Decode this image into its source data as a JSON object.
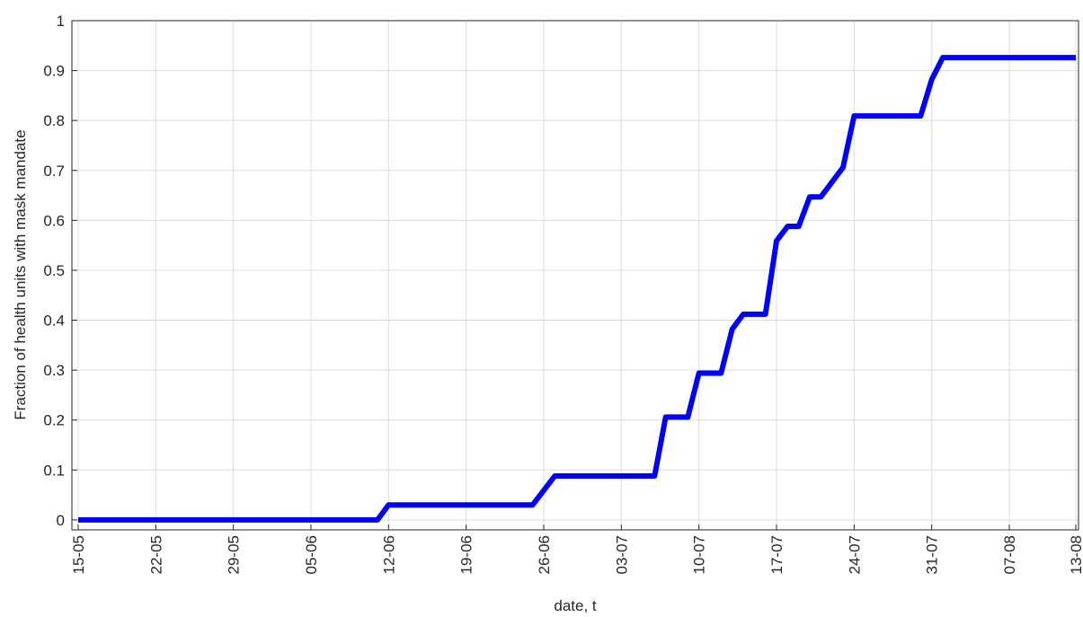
{
  "chart_data": {
    "type": "line",
    "x_label": "date, t",
    "y_label": "Fraction of health units with mask mandate",
    "x": [
      "15-05",
      "11-06",
      "12-06",
      "25-06",
      "27-06",
      "06-07",
      "07-07",
      "09-07",
      "10-07",
      "12-07",
      "13-07",
      "14-07",
      "16-07",
      "17-07",
      "18-07",
      "19-07",
      "20-07",
      "21-07",
      "23-07",
      "24-07",
      "30-07",
      "31-07",
      "01-08",
      "13-08"
    ],
    "series": [
      {
        "color": "#0000ff",
        "values": [
          0,
          0,
          0.03,
          0.03,
          0.088,
          0.088,
          0.206,
          0.206,
          0.294,
          0.294,
          0.382,
          0.412,
          0.412,
          0.559,
          0.588,
          0.588,
          0.647,
          0.647,
          0.706,
          0.809,
          0.809,
          0.882,
          0.926,
          0.926
        ]
      }
    ],
    "xlim": [
      "15-05",
      "13-08"
    ],
    "xticks": [
      "15-05",
      "22-05",
      "29-05",
      "05-06",
      "12-06",
      "19-06",
      "26-06",
      "03-07",
      "10-07",
      "17-07",
      "24-07",
      "31-07",
      "07-08",
      "13-08"
    ],
    "ylim": [
      -0.02,
      1
    ],
    "yticks": [
      0,
      0.1,
      0.2,
      0.3,
      0.4,
      0.5,
      0.6,
      0.7,
      0.8,
      0.9,
      1
    ],
    "grid": true
  }
}
